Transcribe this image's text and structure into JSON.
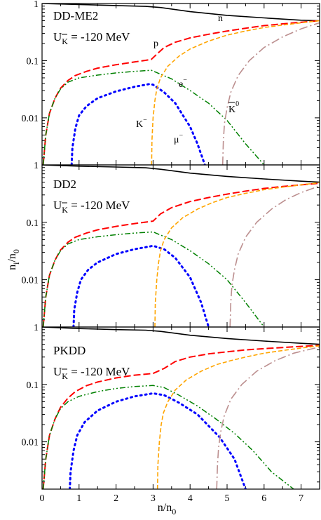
{
  "figure": {
    "xlabel": "n/n",
    "xlabel_sub": "0",
    "ylabel": "n",
    "ylabel_sub1": "i",
    "ylabel_sub2": "/n",
    "ylabel_sub3": "0"
  },
  "x_ticks": [
    "0",
    "1",
    "2",
    "3",
    "4",
    "5",
    "6",
    "7"
  ],
  "y_ticks": [
    "1",
    "0.1",
    "0.01"
  ],
  "colors": {
    "n": "#000000",
    "p": "#ff0000",
    "e": "#008000",
    "mu": "#0000ff",
    "K-": "#ffa500",
    "K0": "#bc8f8f"
  },
  "chart_data": [
    {
      "type": "line",
      "title": "DD-ME2",
      "potential_label": "U",
      "potential_value": " = -120 MeV",
      "xlim": [
        0,
        7.5
      ],
      "ylim": [
        0.0015,
        1
      ],
      "yscale": "log",
      "annotations": {
        "n": "n",
        "p": "p",
        "e": "e",
        "e_sup": "−",
        "K": "K",
        "K_sup": "−",
        "mu": "μ",
        "mu_sup": "−",
        "K0": "K",
        "K0_sup": "0"
      },
      "series": [
        {
          "key": "n",
          "name": "n",
          "x": [
            0,
            1,
            2,
            2.8,
            3.2,
            4,
            5,
            6,
            7,
            7.5
          ],
          "y": [
            1,
            0.96,
            0.92,
            0.89,
            0.85,
            0.72,
            0.62,
            0.56,
            0.51,
            0.5
          ]
        },
        {
          "key": "p",
          "name": "p",
          "x": [
            0.03,
            0.1,
            0.2,
            0.35,
            0.5,
            0.7,
            0.9,
            1.2,
            1.5,
            2,
            2.5,
            2.95,
            3.1,
            3.3,
            3.6,
            4,
            4.5,
            5,
            5.5,
            6,
            6.5,
            7,
            7.5
          ],
          "y": [
            0.0015,
            0.005,
            0.012,
            0.022,
            0.033,
            0.045,
            0.055,
            0.065,
            0.074,
            0.085,
            0.095,
            0.105,
            0.13,
            0.17,
            0.21,
            0.25,
            0.29,
            0.33,
            0.37,
            0.41,
            0.44,
            0.47,
            0.5
          ]
        },
        {
          "key": "e",
          "name": "e",
          "x": [
            0.03,
            0.1,
            0.2,
            0.35,
            0.5,
            0.7,
            1,
            1.5,
            2,
            2.5,
            2.95,
            3.5,
            4,
            4.5,
            5,
            5.5,
            6
          ],
          "y": [
            0.0015,
            0.005,
            0.012,
            0.022,
            0.032,
            0.042,
            0.05,
            0.056,
            0.061,
            0.065,
            0.068,
            0.048,
            0.03,
            0.018,
            0.009,
            0.0035,
            0.0015
          ]
        },
        {
          "key": "mu",
          "name": "μ",
          "x": [
            0.8,
            0.82,
            0.9,
            1,
            1.2,
            1.5,
            2,
            2.5,
            2.9,
            3,
            3.3,
            3.6,
            4,
            4.2,
            4.4
          ],
          "y": [
            0.0015,
            0.003,
            0.0065,
            0.011,
            0.016,
            0.022,
            0.029,
            0.035,
            0.039,
            0.038,
            0.028,
            0.018,
            0.007,
            0.0035,
            0.0015
          ]
        },
        {
          "key": "K-",
          "name": "K",
          "x": [
            2.96,
            2.97,
            3.0,
            3.05,
            3.1,
            3.2,
            3.4,
            3.7,
            4,
            4.5,
            5,
            5.5,
            6,
            6.5,
            7,
            7.5
          ],
          "y": [
            0.0015,
            0.004,
            0.01,
            0.02,
            0.032,
            0.05,
            0.08,
            0.12,
            0.16,
            0.22,
            0.28,
            0.33,
            0.38,
            0.42,
            0.46,
            0.5
          ]
        },
        {
          "key": "K0",
          "name": "K",
          "x": [
            4.88,
            4.9,
            4.93,
            5,
            5.1,
            5.3,
            5.6,
            6,
            6.5,
            7,
            7.5
          ],
          "y": [
            0.0015,
            0.004,
            0.008,
            0.015,
            0.028,
            0.055,
            0.1,
            0.17,
            0.26,
            0.36,
            0.46
          ]
        }
      ]
    },
    {
      "type": "line",
      "title": "DD2",
      "potential_label": "U",
      "potential_value": " = -120 MeV",
      "xlim": [
        0,
        7.5
      ],
      "ylim": [
        0.0015,
        1
      ],
      "yscale": "log",
      "series": [
        {
          "key": "n",
          "name": "n",
          "x": [
            0,
            1,
            2,
            2.8,
            3.2,
            4,
            5,
            6,
            7,
            7.5
          ],
          "y": [
            1,
            0.95,
            0.92,
            0.89,
            0.84,
            0.72,
            0.63,
            0.57,
            0.52,
            0.5
          ]
        },
        {
          "key": "p",
          "name": "p",
          "x": [
            0.03,
            0.1,
            0.2,
            0.35,
            0.5,
            0.7,
            0.9,
            1.2,
            1.5,
            2,
            2.5,
            3.0,
            3.2,
            3.5,
            4,
            4.5,
            5,
            5.5,
            6,
            6.5,
            7,
            7.5
          ],
          "y": [
            0.0015,
            0.005,
            0.012,
            0.022,
            0.033,
            0.045,
            0.055,
            0.065,
            0.074,
            0.085,
            0.095,
            0.105,
            0.14,
            0.18,
            0.23,
            0.27,
            0.31,
            0.35,
            0.39,
            0.42,
            0.45,
            0.48
          ]
        },
        {
          "key": "e",
          "name": "e",
          "x": [
            0.03,
            0.1,
            0.2,
            0.35,
            0.5,
            0.7,
            1,
            1.5,
            2,
            2.5,
            3.0,
            3.5,
            4,
            4.5,
            5,
            5.5,
            6
          ],
          "y": [
            0.0015,
            0.005,
            0.012,
            0.022,
            0.032,
            0.042,
            0.05,
            0.056,
            0.061,
            0.065,
            0.068,
            0.05,
            0.032,
            0.019,
            0.01,
            0.004,
            0.0015
          ]
        },
        {
          "key": "mu",
          "name": "μ",
          "x": [
            0.85,
            0.87,
            0.95,
            1.05,
            1.25,
            1.5,
            2,
            2.5,
            3,
            3.3,
            3.6,
            4,
            4.3,
            4.5
          ],
          "y": [
            0.0015,
            0.003,
            0.006,
            0.01,
            0.015,
            0.02,
            0.028,
            0.034,
            0.039,
            0.034,
            0.024,
            0.011,
            0.004,
            0.0015
          ]
        },
        {
          "key": "K-",
          "name": "K",
          "x": [
            3.05,
            3.06,
            3.1,
            3.15,
            3.2,
            3.3,
            3.5,
            3.8,
            4.2,
            4.6,
            5,
            5.5,
            6,
            6.5,
            7,
            7.5
          ],
          "y": [
            0.0015,
            0.004,
            0.01,
            0.02,
            0.032,
            0.05,
            0.08,
            0.12,
            0.17,
            0.22,
            0.27,
            0.32,
            0.37,
            0.41,
            0.45,
            0.49
          ]
        },
        {
          "key": "K0",
          "name": "K",
          "x": [
            5.08,
            5.1,
            5.13,
            5.2,
            5.3,
            5.5,
            5.8,
            6.2,
            6.6,
            7,
            7.5
          ],
          "y": [
            0.0015,
            0.004,
            0.008,
            0.015,
            0.028,
            0.055,
            0.1,
            0.17,
            0.25,
            0.33,
            0.43
          ]
        }
      ]
    },
    {
      "type": "line",
      "title": "PKDD",
      "potential_label": "U",
      "potential_value": " = -120 MeV",
      "xlim": [
        0,
        7.5
      ],
      "ylim": [
        0.0015,
        1
      ],
      "yscale": "log",
      "series": [
        {
          "key": "n",
          "name": "n",
          "x": [
            0,
            1,
            2,
            2.8,
            3.2,
            4,
            5,
            6,
            7,
            7.5
          ],
          "y": [
            1,
            0.94,
            0.9,
            0.88,
            0.84,
            0.72,
            0.63,
            0.57,
            0.52,
            0.5
          ]
        },
        {
          "key": "p",
          "name": "p",
          "x": [
            0.03,
            0.1,
            0.2,
            0.35,
            0.5,
            0.7,
            0.9,
            1.2,
            1.5,
            2,
            2.5,
            3.0,
            3.3,
            3.6,
            4,
            4.5,
            5,
            5.5,
            6,
            6.5,
            7,
            7.5
          ],
          "y": [
            0.0015,
            0.005,
            0.013,
            0.025,
            0.04,
            0.058,
            0.075,
            0.095,
            0.11,
            0.13,
            0.145,
            0.155,
            0.19,
            0.25,
            0.3,
            0.34,
            0.37,
            0.4,
            0.42,
            0.44,
            0.46,
            0.48
          ]
        },
        {
          "key": "e",
          "name": "e",
          "x": [
            0.03,
            0.1,
            0.2,
            0.35,
            0.5,
            0.7,
            1,
            1.5,
            2,
            2.5,
            3.0,
            3.3,
            3.7,
            4.2,
            4.7,
            5.2,
            5.7,
            6.2,
            6.8
          ],
          "y": [
            0.0015,
            0.005,
            0.013,
            0.025,
            0.038,
            0.05,
            0.062,
            0.075,
            0.085,
            0.092,
            0.096,
            0.088,
            0.065,
            0.042,
            0.025,
            0.014,
            0.007,
            0.003,
            0.0015
          ]
        },
        {
          "key": "mu",
          "name": "μ",
          "x": [
            0.75,
            0.77,
            0.85,
            0.95,
            1.15,
            1.5,
            2,
            2.5,
            3,
            3.3,
            3.7,
            4.2,
            4.8,
            5.2,
            5.5
          ],
          "y": [
            0.0015,
            0.003,
            0.007,
            0.013,
            0.022,
            0.035,
            0.05,
            0.062,
            0.07,
            0.065,
            0.048,
            0.03,
            0.012,
            0.005,
            0.0015
          ]
        },
        {
          "key": "K-",
          "name": "K",
          "x": [
            3.12,
            3.13,
            3.17,
            3.22,
            3.28,
            3.4,
            3.6,
            3.9,
            4.3,
            4.7,
            5.1,
            5.5,
            6,
            6.5,
            7,
            7.5
          ],
          "y": [
            0.0015,
            0.004,
            0.01,
            0.02,
            0.032,
            0.05,
            0.08,
            0.12,
            0.17,
            0.22,
            0.26,
            0.3,
            0.35,
            0.39,
            0.43,
            0.47
          ]
        },
        {
          "key": "K0",
          "name": "K",
          "x": [
            4.72,
            4.74,
            4.77,
            4.83,
            4.92,
            5.1,
            5.4,
            5.8,
            6.3,
            6.8,
            7.5
          ],
          "y": [
            0.0015,
            0.004,
            0.008,
            0.015,
            0.028,
            0.055,
            0.1,
            0.17,
            0.26,
            0.35,
            0.45
          ]
        }
      ]
    }
  ]
}
